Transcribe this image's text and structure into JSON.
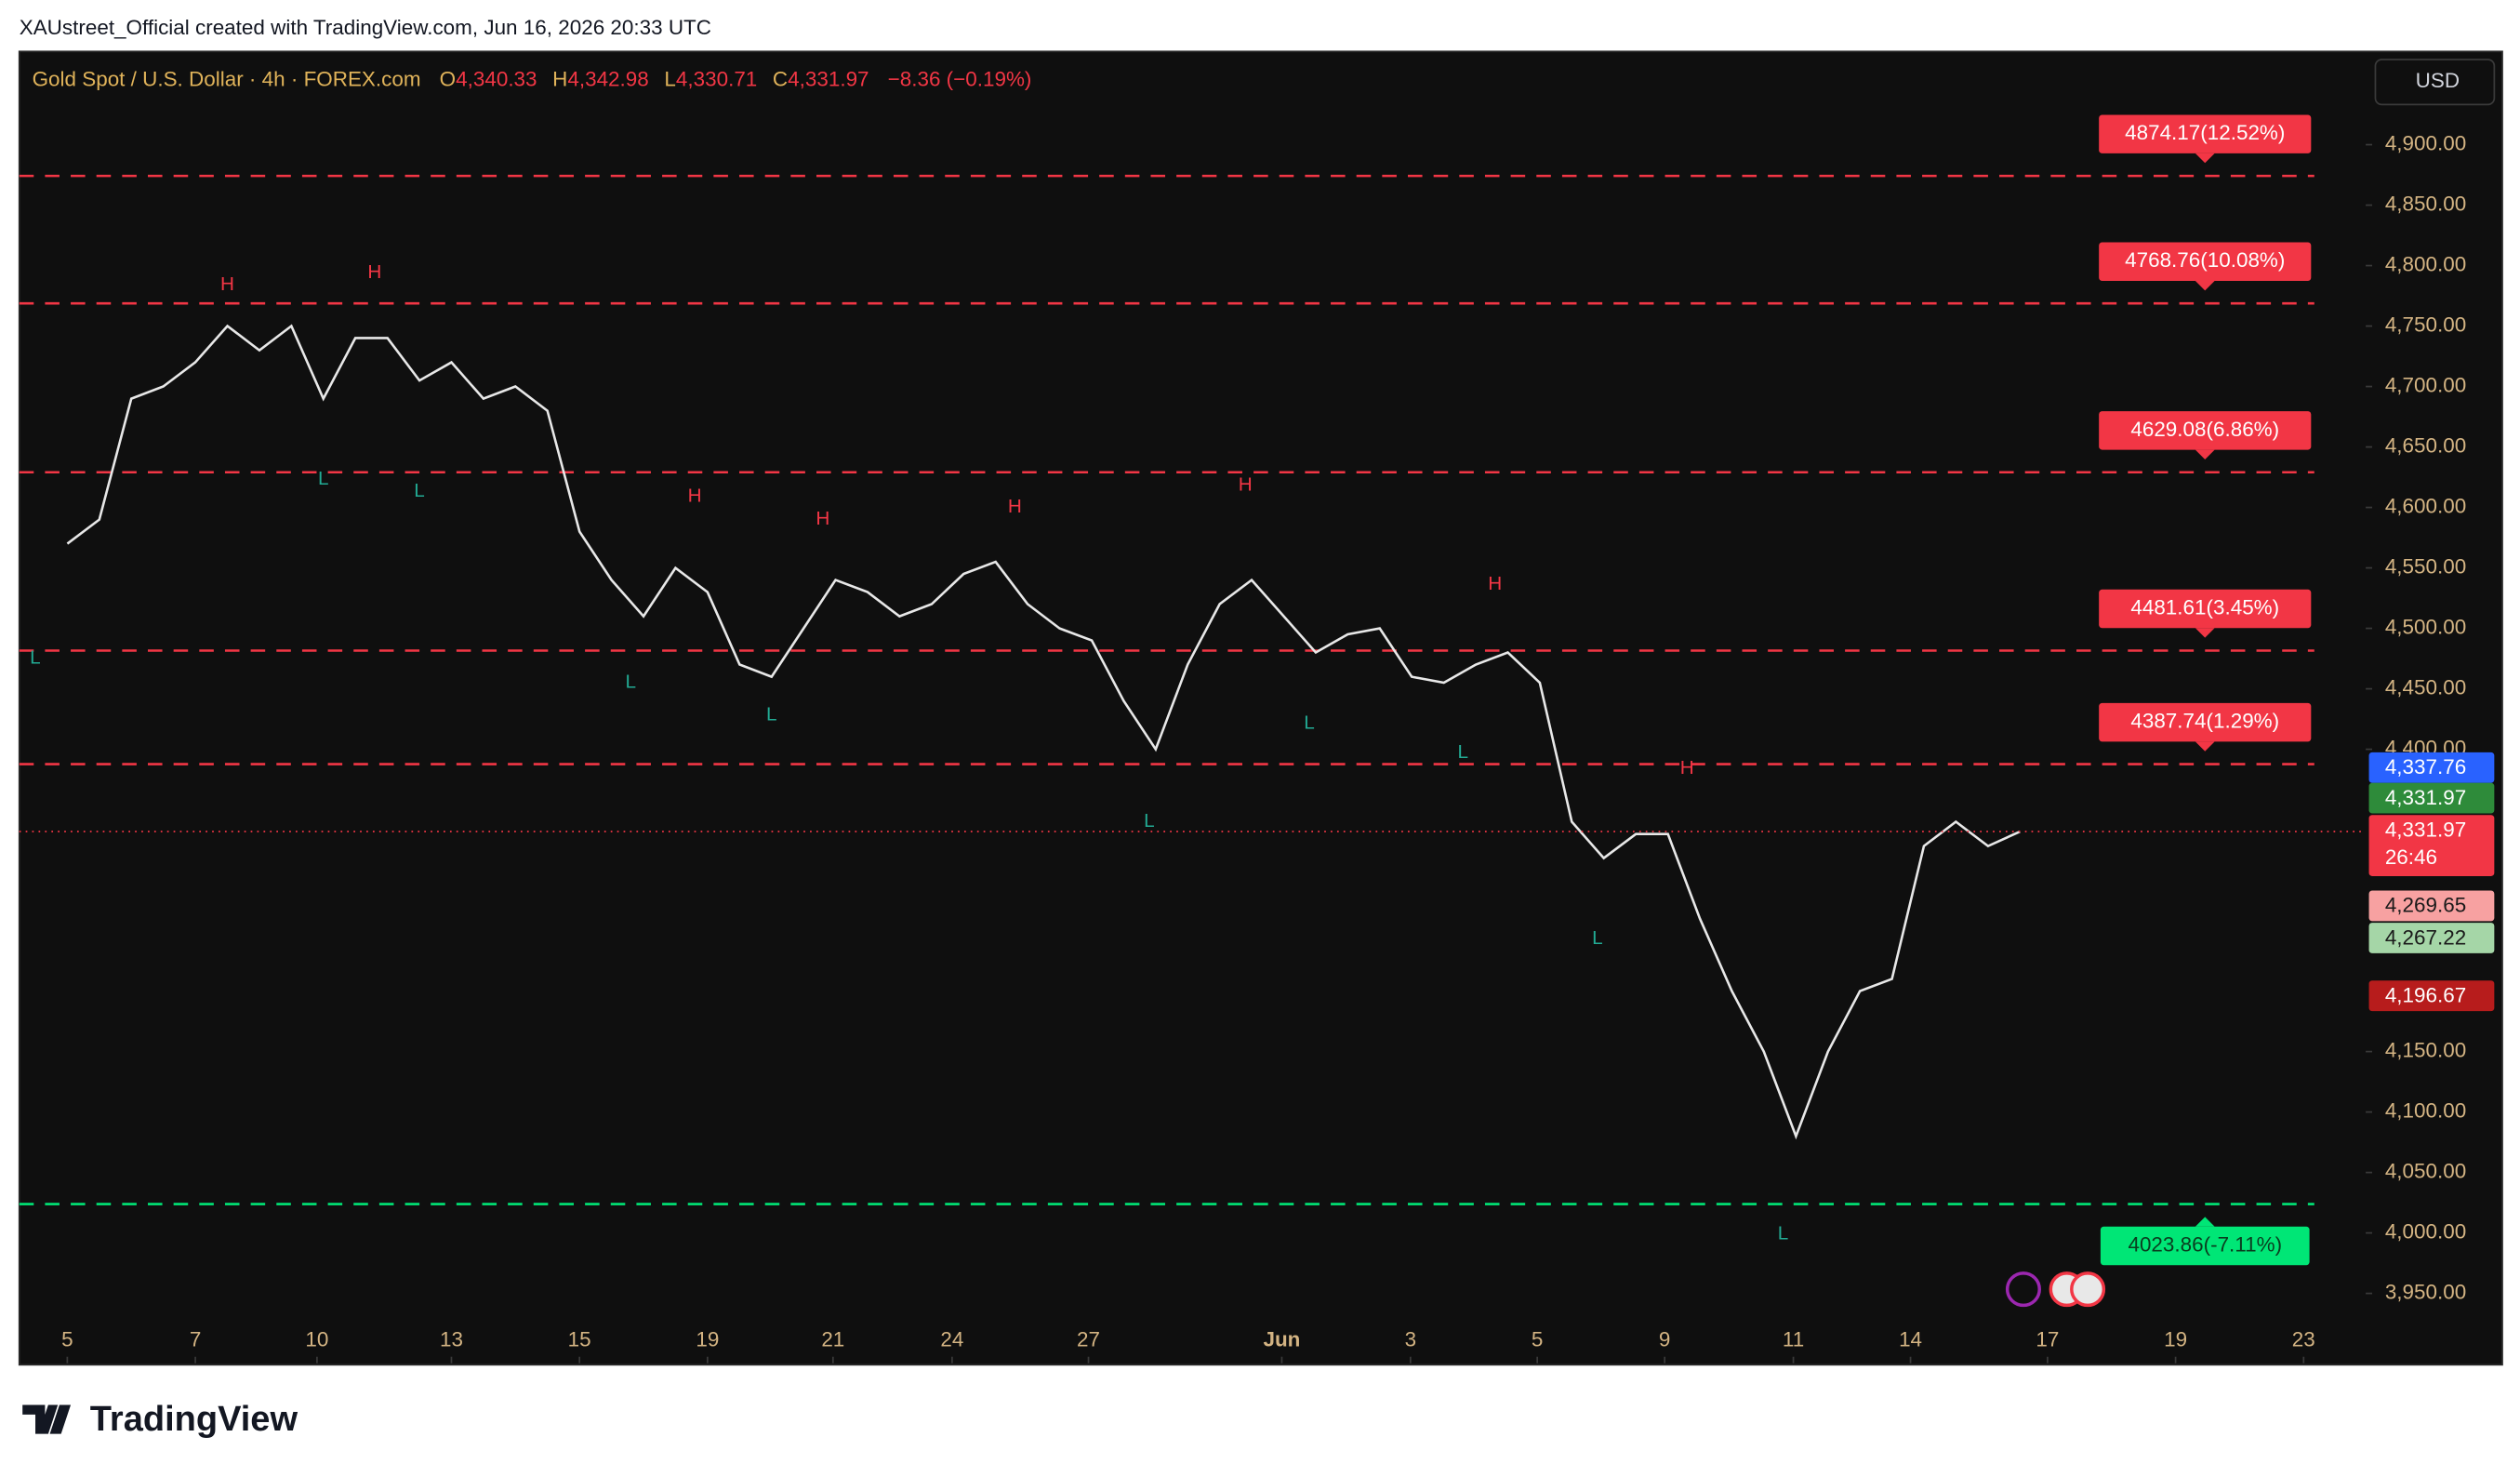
{
  "header": {
    "caption": "XAUstreet_Official created with TradingView.com, Jun 16, 2026 20:33 UTC"
  },
  "chart_data": {
    "type": "line",
    "title": "Gold Spot / U.S. Dollar · 4h · FOREX.com",
    "legend_values": [
      {
        "key": "O",
        "value": "4,340.33"
      },
      {
        "key": "H",
        "value": "4,342.98"
      },
      {
        "key": "L",
        "value": "4,330.71"
      },
      {
        "key": "C",
        "value": "4,331.97"
      }
    ],
    "change": "−8.36 (−0.19%)",
    "currency": "USD",
    "color": "#e8e8e8",
    "x": [
      0,
      0.5,
      1,
      1.5,
      2,
      2.5,
      3,
      3.5,
      4,
      4.5,
      5,
      5.5,
      6,
      6.5,
      7,
      7.5,
      8,
      8.5,
      9,
      9.5,
      10,
      10.5,
      11,
      11.5,
      12,
      12.5,
      13,
      13.5,
      14,
      14.5,
      15,
      15.5,
      16,
      16.5,
      17,
      17.5,
      18,
      18.5,
      19,
      19.5,
      20,
      20.5,
      21,
      21.5,
      22,
      22.5,
      23,
      23.5,
      24,
      24.5,
      25,
      25.5,
      26,
      26.5,
      27,
      27.5,
      28,
      28.5,
      29,
      29.5,
      30,
      30.5
    ],
    "values": [
      4570,
      4590,
      4690,
      4700,
      4720,
      4750,
      4730,
      4750,
      4690,
      4740,
      4740,
      4705,
      4720,
      4690,
      4700,
      4680,
      4580,
      4540,
      4510,
      4550,
      4530,
      4470,
      4460,
      4500,
      4540,
      4530,
      4510,
      4520,
      4545,
      4555,
      4520,
      4500,
      4490,
      4440,
      4400,
      4470,
      4520,
      4540,
      4510,
      4480,
      4495,
      4500,
      4460,
      4455,
      4470,
      4480,
      4455,
      4340,
      4310,
      4330,
      4330,
      4260,
      4200,
      4150,
      4080,
      4150,
      4200,
      4210,
      4320,
      4340,
      4320,
      4331.97
    ],
    "xlim": [
      -0.75,
      35.9
    ],
    "xticks": [
      {
        "value": 0,
        "label": "5"
      },
      {
        "value": 2,
        "label": "7"
      },
      {
        "value": 3.9,
        "label": "10"
      },
      {
        "value": 6,
        "label": "13"
      },
      {
        "value": 8,
        "label": "15"
      },
      {
        "value": 10,
        "label": "19"
      },
      {
        "value": 11.96,
        "label": "21"
      },
      {
        "value": 13.82,
        "label": "24"
      },
      {
        "value": 15.95,
        "label": "27"
      },
      {
        "value": 18.97,
        "label": "Jun"
      },
      {
        "value": 20.98,
        "label": "3"
      },
      {
        "value": 22.96,
        "label": "5"
      },
      {
        "value": 24.95,
        "label": "9"
      },
      {
        "value": 26.96,
        "label": "11"
      },
      {
        "value": 28.79,
        "label": "14"
      },
      {
        "value": 30.93,
        "label": "17"
      },
      {
        "value": 32.93,
        "label": "19"
      },
      {
        "value": 34.93,
        "label": "23"
      }
    ],
    "ylim": [
      3892.3,
      4977.1
    ],
    "yticks": [
      {
        "value": 4900,
        "label": "4,900.00"
      },
      {
        "value": 4850,
        "label": "4,850.00"
      },
      {
        "value": 4800,
        "label": "4,800.00"
      },
      {
        "value": 4750,
        "label": "4,750.00"
      },
      {
        "value": 4700,
        "label": "4,700.00"
      },
      {
        "value": 4650,
        "label": "4,650.00"
      },
      {
        "value": 4600,
        "label": "4,600.00"
      },
      {
        "value": 4550,
        "label": "4,550.00"
      },
      {
        "value": 4500,
        "label": "4,500.00"
      },
      {
        "value": 4450,
        "label": "4,450.00"
      },
      {
        "value": 4400,
        "label": "4,400.00"
      },
      {
        "value": 4150,
        "label": "4,150.00"
      },
      {
        "value": 4100,
        "label": "4,100.00"
      },
      {
        "value": 4050,
        "label": "4,050.00"
      },
      {
        "value": 4000,
        "label": "4,000.00"
      },
      {
        "value": 3950,
        "label": "3,950.00"
      }
    ],
    "levels": [
      {
        "value": 4874.17,
        "label": "4874.17(12.52%)",
        "color": "#f23645"
      },
      {
        "value": 4768.76,
        "label": "4768.76(10.08%)",
        "color": "#f23645"
      },
      {
        "value": 4629.08,
        "label": "4629.08(6.86%)",
        "color": "#f23645"
      },
      {
        "value": 4481.61,
        "label": "4481.61(3.45%)",
        "color": "#f23645"
      },
      {
        "value": 4387.74,
        "label": "4387.74(1.29%)",
        "color": "#f23645"
      },
      {
        "value": 4023.86,
        "label": "4023.86(-7.11%)",
        "color": "#00e676"
      }
    ],
    "price_labels": [
      {
        "value": 4337.76,
        "label": "4,337.76",
        "color": "#2962ff",
        "text_color": "#ffffff"
      },
      {
        "value": 4331.97,
        "label": "4,331.97",
        "color": "#2e8b3a",
        "text_color": "#ffffff"
      },
      {
        "value": 4331.97,
        "label": "4,331.97",
        "color": "#f23645",
        "text_color": "#ffffff"
      },
      {
        "value": 4269.65,
        "label": "4,269.65",
        "color": "#f7a1a1",
        "text_color": "#1a1a1a"
      },
      {
        "value": 4267.22,
        "label": "4,267.22",
        "color": "#a5d6a7",
        "text_color": "#1a1a1a"
      },
      {
        "value": 4196.67,
        "label": "4,196.67",
        "color": "#b71c1c",
        "text_color": "#ffffff"
      }
    ],
    "countdown": "26:46",
    "annotations": [
      {
        "text": "H",
        "x": 2.5,
        "price": 4784
      },
      {
        "text": "H",
        "x": 4.8,
        "price": 4794
      },
      {
        "text": "L",
        "x": -0.5,
        "price": 4475
      },
      {
        "text": "L",
        "x": 4,
        "price": 4623
      },
      {
        "text": "L",
        "x": 5.5,
        "price": 4613
      },
      {
        "text": "L",
        "x": 8.8,
        "price": 4455
      },
      {
        "text": "H",
        "x": 9.8,
        "price": 4609
      },
      {
        "text": "H",
        "x": 11.8,
        "price": 4590
      },
      {
        "text": "L",
        "x": 11,
        "price": 4428
      },
      {
        "text": "H",
        "x": 14.8,
        "price": 4600
      },
      {
        "text": "L",
        "x": 16.9,
        "price": 4340
      },
      {
        "text": "H",
        "x": 18.4,
        "price": 4618
      },
      {
        "text": "L",
        "x": 19.4,
        "price": 4421
      },
      {
        "text": "L",
        "x": 21.8,
        "price": 4397
      },
      {
        "text": "H",
        "x": 22.3,
        "price": 4536
      },
      {
        "text": "L",
        "x": 23.9,
        "price": 4243
      },
      {
        "text": "H",
        "x": 25.3,
        "price": 4384
      },
      {
        "text": "L",
        "x": 26.8,
        "price": 3999
      }
    ]
  },
  "footer": {
    "logo": "TradingView"
  }
}
